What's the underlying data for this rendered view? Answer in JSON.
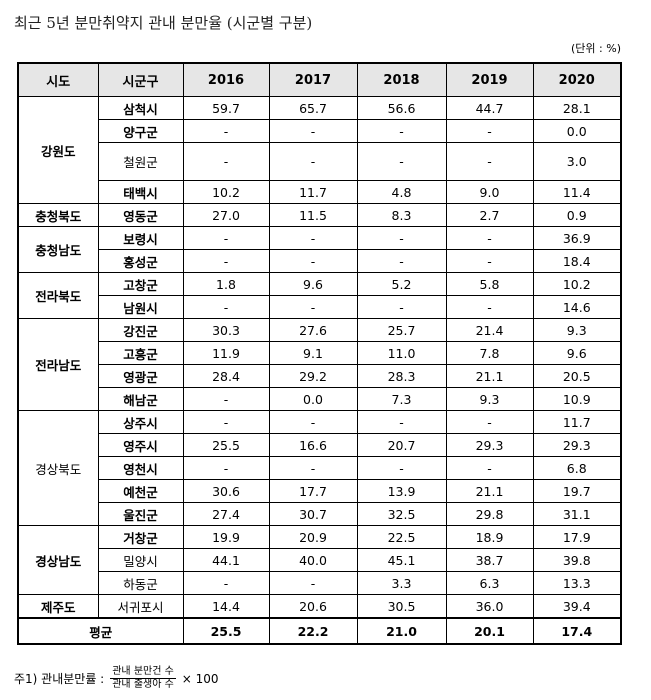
{
  "title": "최근 5년 분만취약지 관내 분만율 (시군별 구분)",
  "unit": "(단위 : %)",
  "headers": [
    "시도",
    "시군구",
    "2016",
    "2017",
    "2018",
    "2019",
    "2020"
  ],
  "groups": [
    {
      "sido": "강원도",
      "sido_bold": true,
      "rows": [
        {
          "name": "삼척시",
          "bold": true,
          "v": [
            "59.7",
            "65.7",
            "56.6",
            "44.7",
            "28.1"
          ]
        },
        {
          "name": "양구군",
          "bold": true,
          "v": [
            "-",
            "-",
            "-",
            "-",
            "0.0"
          ]
        },
        {
          "name": "철원군",
          "bold": false,
          "tall": true,
          "v": [
            "-",
            "-",
            "-",
            "-",
            "3.0"
          ]
        },
        {
          "name": "태백시",
          "bold": true,
          "v": [
            "10.2",
            "11.7",
            "4.8",
            "9.0",
            "11.4"
          ]
        }
      ]
    },
    {
      "sido": "충청북도",
      "sido_bold": true,
      "rows": [
        {
          "name": "영동군",
          "bold": true,
          "v": [
            "27.0",
            "11.5",
            "8.3",
            "2.7",
            "0.9"
          ]
        }
      ]
    },
    {
      "sido": "충청남도",
      "sido_bold": true,
      "rows": [
        {
          "name": "보령시",
          "bold": true,
          "v": [
            "-",
            "-",
            "-",
            "-",
            "36.9"
          ]
        },
        {
          "name": "홍성군",
          "bold": true,
          "v": [
            "-",
            "-",
            "-",
            "-",
            "18.4"
          ]
        }
      ]
    },
    {
      "sido": "전라북도",
      "sido_bold": true,
      "rows": [
        {
          "name": "고창군",
          "bold": true,
          "v": [
            "1.8",
            "9.6",
            "5.2",
            "5.8",
            "10.2"
          ]
        },
        {
          "name": "남원시",
          "bold": true,
          "v": [
            "-",
            "-",
            "-",
            "-",
            "14.6"
          ]
        }
      ]
    },
    {
      "sido": "전라남도",
      "sido_bold": true,
      "rows": [
        {
          "name": "강진군",
          "bold": true,
          "v": [
            "30.3",
            "27.6",
            "25.7",
            "21.4",
            "9.3"
          ]
        },
        {
          "name": "고흥군",
          "bold": true,
          "v": [
            "11.9",
            "9.1",
            "11.0",
            "7.8",
            "9.6"
          ]
        },
        {
          "name": "영광군",
          "bold": true,
          "v": [
            "28.4",
            "29.2",
            "28.3",
            "21.1",
            "20.5"
          ]
        },
        {
          "name": "해남군",
          "bold": true,
          "v": [
            "-",
            "0.0",
            "7.3",
            "9.3",
            "10.9"
          ]
        }
      ]
    },
    {
      "sido": "경상북도",
      "sido_bold": false,
      "rows": [
        {
          "name": "상주시",
          "bold": true,
          "v": [
            "-",
            "-",
            "-",
            "-",
            "11.7"
          ]
        },
        {
          "name": "영주시",
          "bold": true,
          "v": [
            "25.5",
            "16.6",
            "20.7",
            "29.3",
            "29.3"
          ]
        },
        {
          "name": "영천시",
          "bold": true,
          "v": [
            "-",
            "-",
            "-",
            "-",
            "6.8"
          ]
        },
        {
          "name": "예천군",
          "bold": true,
          "v": [
            "30.6",
            "17.7",
            "13.9",
            "21.1",
            "19.7"
          ]
        },
        {
          "name": "울진군",
          "bold": true,
          "v": [
            "27.4",
            "30.7",
            "32.5",
            "29.8",
            "31.1"
          ]
        }
      ]
    },
    {
      "sido": "경상남도",
      "sido_bold": true,
      "rows": [
        {
          "name": "거창군",
          "bold": true,
          "v": [
            "19.9",
            "20.9",
            "22.5",
            "18.9",
            "17.9"
          ]
        },
        {
          "name": "밀양시",
          "bold": false,
          "v": [
            "44.1",
            "40.0",
            "45.1",
            "38.7",
            "39.8"
          ]
        },
        {
          "name": "하동군",
          "bold": false,
          "v": [
            "-",
            "-",
            "3.3",
            "6.3",
            "13.3"
          ]
        }
      ]
    },
    {
      "sido": "제주도",
      "sido_bold": true,
      "rows": [
        {
          "name": "서귀포시",
          "bold": false,
          "v": [
            "14.4",
            "20.6",
            "30.5",
            "36.0",
            "39.4"
          ]
        }
      ]
    }
  ],
  "average": {
    "label": "평균",
    "v": [
      "25.5",
      "22.2",
      "21.0",
      "20.1",
      "17.4"
    ]
  },
  "note": {
    "prefix": "주1) 관내분만률 :",
    "numerator": "관내 분만건 수",
    "denominator": "관내 출생아 수",
    "suffix": "× 100"
  }
}
